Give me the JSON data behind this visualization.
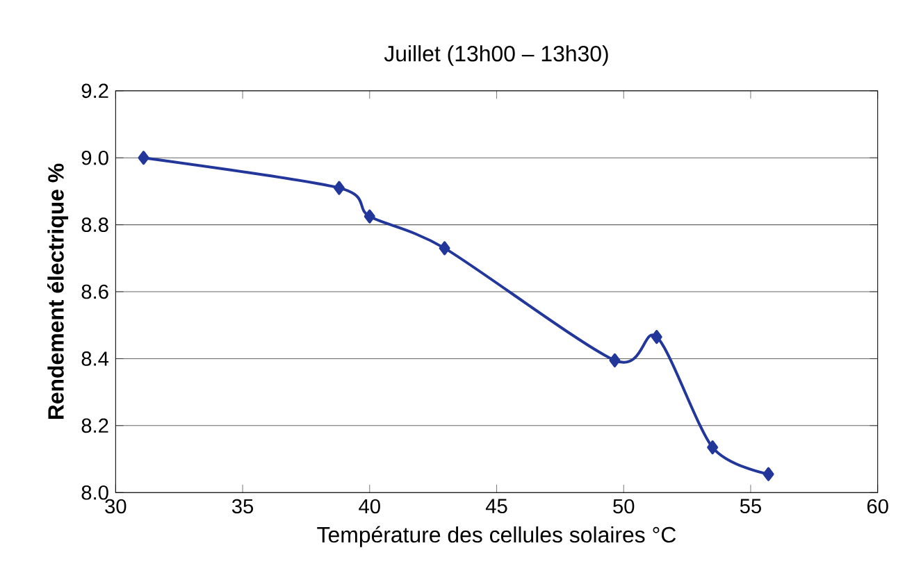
{
  "chart_data": {
    "type": "line",
    "title": "Juillet (13h00 – 13h30)",
    "xlabel": "Température des cellules solaires °C",
    "ylabel": "Rendement électrique %",
    "x": [
      31.1,
      38.8,
      40.0,
      42.95,
      49.65,
      51.3,
      53.5,
      55.7
    ],
    "series": [
      {
        "color": "#23379a",
        "values": [
          9.0,
          8.91,
          8.825,
          8.73,
          8.395,
          8.465,
          8.135,
          8.055
        ]
      }
    ],
    "xlim": [
      30,
      60
    ],
    "xticks": [
      30,
      35,
      40,
      45,
      50,
      55,
      60
    ],
    "ylim": [
      8.0,
      9.2
    ],
    "yticks": [
      {
        "value": 8.0,
        "label": "8.0"
      },
      8.2,
      8.4,
      8.6,
      8.8,
      {
        "value": 9.0,
        "label": "9.0"
      },
      9.2
    ],
    "grid": "y",
    "marker": "diamond",
    "line_style": "solid"
  }
}
